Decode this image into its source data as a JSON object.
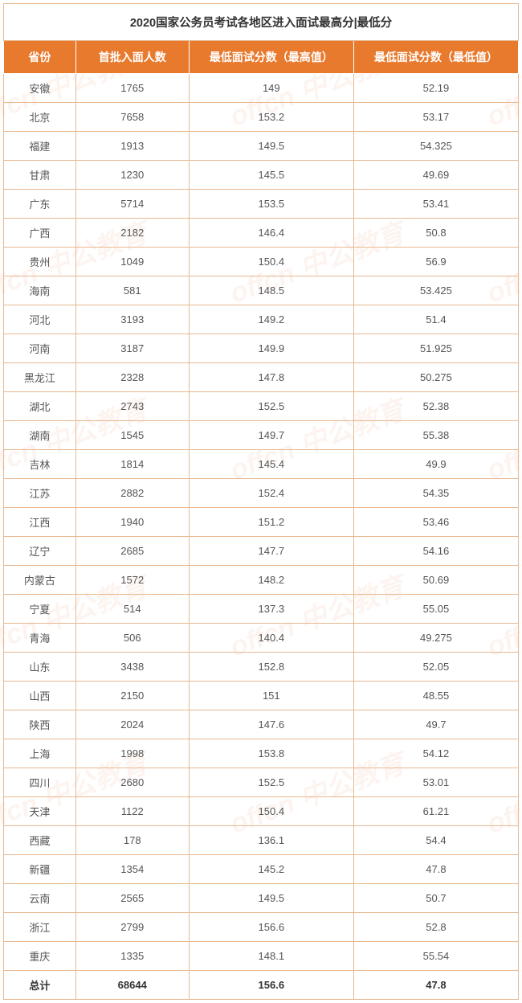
{
  "title": "2020国家公务员考试各地区进入面试最高分|最低分",
  "columns": [
    "省份",
    "首批入面人数",
    "最低面试分数（最高值）",
    "最低面试分数（最低值）"
  ],
  "rows": [
    {
      "province": "安徽",
      "count": "1765",
      "max": "149",
      "min": "52.19"
    },
    {
      "province": "北京",
      "count": "7658",
      "max": "153.2",
      "min": "53.17"
    },
    {
      "province": "福建",
      "count": "1913",
      "max": "149.5",
      "min": "54.325"
    },
    {
      "province": "甘肃",
      "count": "1230",
      "max": "145.5",
      "min": "49.69"
    },
    {
      "province": "广东",
      "count": "5714",
      "max": "153.5",
      "min": "53.41"
    },
    {
      "province": "广西",
      "count": "2182",
      "max": "146.4",
      "min": "50.8"
    },
    {
      "province": "贵州",
      "count": "1049",
      "max": "150.4",
      "min": "56.9"
    },
    {
      "province": "海南",
      "count": "581",
      "max": "148.5",
      "min": "53.425"
    },
    {
      "province": "河北",
      "count": "3193",
      "max": "149.2",
      "min": "51.4"
    },
    {
      "province": "河南",
      "count": "3187",
      "max": "149.9",
      "min": "51.925"
    },
    {
      "province": "黑龙江",
      "count": "2328",
      "max": "147.8",
      "min": "50.275"
    },
    {
      "province": "湖北",
      "count": "2743",
      "max": "152.5",
      "min": "52.38"
    },
    {
      "province": "湖南",
      "count": "1545",
      "max": "149.7",
      "min": "55.38"
    },
    {
      "province": "吉林",
      "count": "1814",
      "max": "145.4",
      "min": "49.9"
    },
    {
      "province": "江苏",
      "count": "2882",
      "max": "152.4",
      "min": "54.35"
    },
    {
      "province": "江西",
      "count": "1940",
      "max": "151.2",
      "min": "53.46"
    },
    {
      "province": "辽宁",
      "count": "2685",
      "max": "147.7",
      "min": "54.16"
    },
    {
      "province": "内蒙古",
      "count": "1572",
      "max": "148.2",
      "min": "50.69"
    },
    {
      "province": "宁夏",
      "count": "514",
      "max": "137.3",
      "min": "55.05"
    },
    {
      "province": "青海",
      "count": "506",
      "max": "140.4",
      "min": "49.275"
    },
    {
      "province": "山东",
      "count": "3438",
      "max": "152.8",
      "min": "52.05"
    },
    {
      "province": "山西",
      "count": "2150",
      "max": "151",
      "min": "48.55"
    },
    {
      "province": "陕西",
      "count": "2024",
      "max": "147.6",
      "min": "49.7"
    },
    {
      "province": "上海",
      "count": "1998",
      "max": "153.8",
      "min": "54.12"
    },
    {
      "province": "四川",
      "count": "2680",
      "max": "152.5",
      "min": "53.01"
    },
    {
      "province": "天津",
      "count": "1122",
      "max": "150.4",
      "min": "61.21"
    },
    {
      "province": "西藏",
      "count": "178",
      "max": "136.1",
      "min": "54.4"
    },
    {
      "province": "新疆",
      "count": "1354",
      "max": "145.2",
      "min": "47.8"
    },
    {
      "province": "云南",
      "count": "2565",
      "max": "149.5",
      "min": "50.7"
    },
    {
      "province": "浙江",
      "count": "2799",
      "max": "156.6",
      "min": "52.8"
    },
    {
      "province": "重庆",
      "count": "1335",
      "max": "148.1",
      "min": "55.54"
    }
  ],
  "total": {
    "province": "总计",
    "count": "68644",
    "max": "156.6",
    "min": "47.8"
  },
  "watermark_text": "offcn 中公教育",
  "styling": {
    "header_bg": "#e87a2e",
    "header_text": "#ffffff",
    "border_color": "#e8b890",
    "cell_text": "#555555",
    "title_fontsize": 14.5,
    "header_fontsize": 14,
    "cell_fontsize": 13,
    "watermark_color": "rgba(230,120,60,0.08)"
  }
}
